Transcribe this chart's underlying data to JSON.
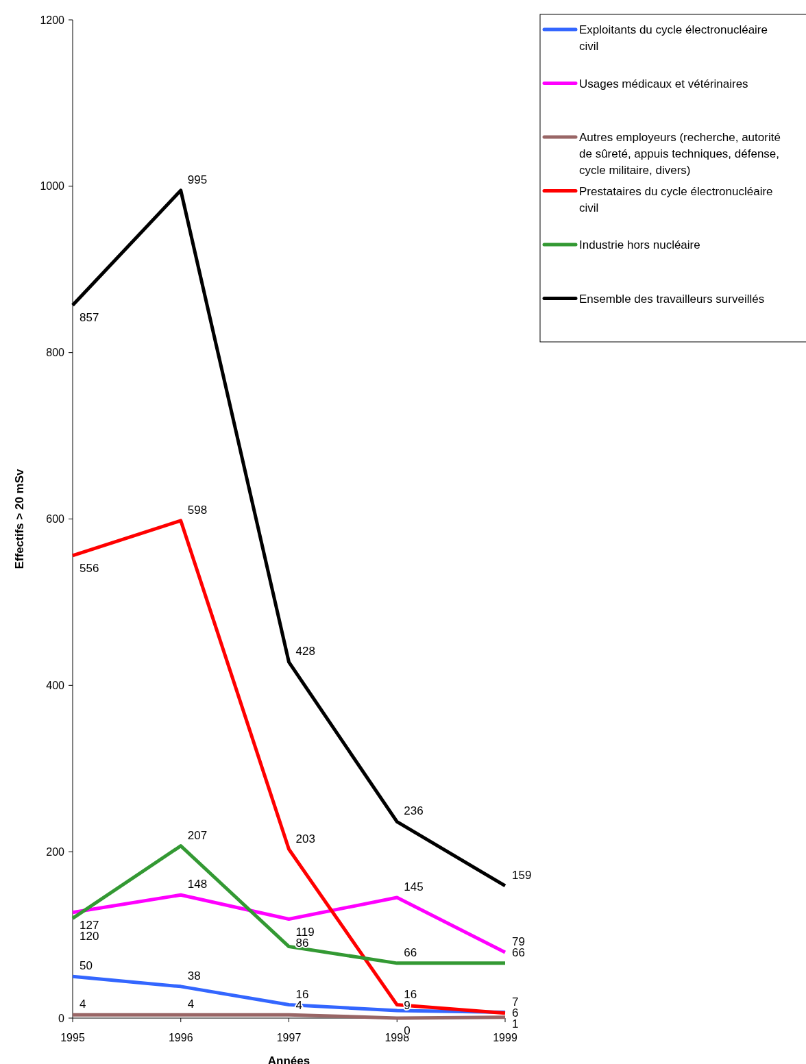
{
  "chart_data": {
    "type": "line",
    "xlabel": "Années",
    "ylabel": "Effectifs > 20 mSv",
    "x": [
      1995,
      1996,
      1997,
      1998,
      1999
    ],
    "xlim": [
      1995,
      1999
    ],
    "xticks": [
      1995,
      1996,
      1997,
      1998,
      1999
    ],
    "ylim": [
      0,
      1200
    ],
    "yticks": [
      0,
      200,
      400,
      600,
      800,
      1000,
      1200
    ],
    "grid": false,
    "legend": "right",
    "marker": "none",
    "line_style": "solid",
    "data_labels": true,
    "series": [
      {
        "name": "Exploitants du cycle électronucléaire civil",
        "color": "#3366ff",
        "values": [
          50,
          38,
          16,
          9,
          7
        ]
      },
      {
        "name": "Usages médicaux et vétérinaires",
        "color": "#ff00ff",
        "values": [
          127,
          148,
          119,
          145,
          79
        ]
      },
      {
        "name": "Autres employeurs (recherche, autorité de sûreté, appuis techniques, défense, cycle militaire, divers)",
        "color": "#996666",
        "values": [
          4,
          4,
          4,
          0,
          1
        ]
      },
      {
        "name": "Prestataires du cycle électronucléaire civil",
        "color": "#ff0000",
        "values": [
          556,
          598,
          203,
          16,
          6
        ]
      },
      {
        "name": "Industrie hors nucléaire",
        "color": "#339933",
        "values": [
          120,
          207,
          86,
          66,
          66
        ]
      },
      {
        "name": "Ensemble des travailleurs surveillés",
        "color": "#000000",
        "values": [
          857,
          995,
          428,
          236,
          159
        ]
      }
    ]
  }
}
